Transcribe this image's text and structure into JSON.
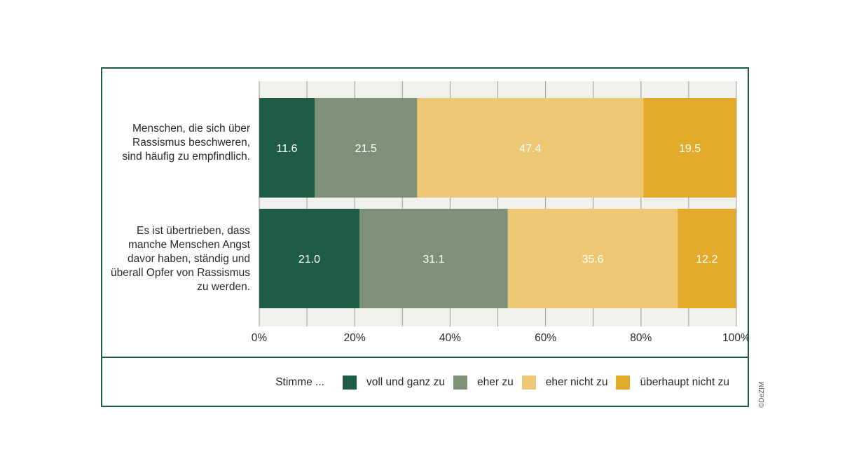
{
  "chart_data": {
    "type": "bar",
    "orientation": "horizontal",
    "stacked": true,
    "categories": [
      "Menschen, die sich über Rassismus beschweren, sind häufig zu empfindlich.",
      "Es ist übertrieben, dass manche Menschen Angst davor haben, ständig und überall Opfer von Rassismus zu werden."
    ],
    "series": [
      {
        "name": "voll und ganz zu",
        "color": "#1e5c47",
        "values": [
          11.6,
          21.0
        ]
      },
      {
        "name": "eher zu",
        "color": "#7e9178",
        "values": [
          21.5,
          31.1
        ]
      },
      {
        "name": "eher nicht zu",
        "color": "#ecc874",
        "values": [
          47.4,
          35.6
        ]
      },
      {
        "name": "überhaupt nicht zu",
        "color": "#e1aa2a",
        "values": [
          19.5,
          12.2
        ]
      }
    ],
    "value_labels": [
      [
        "11.6",
        "21.0"
      ],
      [
        "21.5",
        "31.1"
      ],
      [
        "47.4",
        "35.6"
      ],
      [
        "19.5",
        "12.2"
      ]
    ],
    "xlim": [
      0,
      100
    ],
    "x_ticks": [
      "0%",
      "20%",
      "40%",
      "60%",
      "80%",
      "100%"
    ],
    "grid": true,
    "legend_title": "Stimme ...",
    "legend_position": "bottom"
  },
  "credit": "©DeZIM"
}
